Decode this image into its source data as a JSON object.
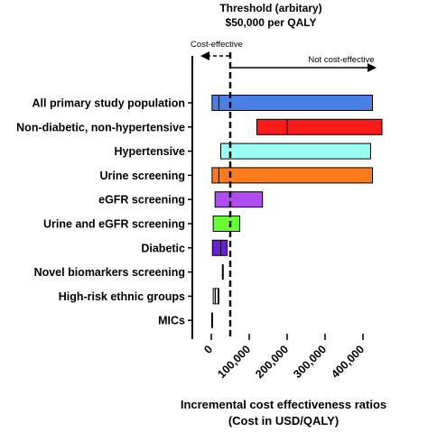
{
  "chart_data": {
    "type": "bar",
    "subtype": "horizontal-floating-range",
    "threshold": {
      "title_line1": "Threshold (arbitary)",
      "title_line2": "$50,000 per QALY",
      "value": 50000,
      "left_label": "Cost-effective",
      "right_label": "Not cost-effective"
    },
    "categories": [
      "All primary study population",
      "Non-diabetic, non-hypertensive",
      "Hypertensive",
      "Urine screening",
      "eGFR screening",
      "Urine and eGFR screening",
      "Diabetic",
      "Novel biomarkers screening",
      "High-risk ethnic groups",
      "MICs"
    ],
    "ranges": [
      {
        "low": 2000,
        "high": 425000,
        "point": 20000,
        "color": "#4a7fe8"
      },
      {
        "low": 120000,
        "high": 450000,
        "point": 200000,
        "color": "#ff1a1a"
      },
      {
        "low": 25000,
        "high": 420000,
        "point": null,
        "color": "#99fff5"
      },
      {
        "low": 2000,
        "high": 425000,
        "point": 20000,
        "color": "#ff7a1a"
      },
      {
        "low": 10000,
        "high": 135000,
        "point": null,
        "color": "#b04cf0"
      },
      {
        "low": 5000,
        "high": 75000,
        "point": null,
        "color": "#66ff33"
      },
      {
        "low": 3000,
        "high": 42000,
        "point": 25000,
        "color": "#6a1fd6"
      },
      {
        "low": 28000,
        "high": 30000,
        "point": null,
        "color": "#000000"
      },
      {
        "low": 5000,
        "high": 20000,
        "point": 10000,
        "color": "#ffffff",
        "hatched": true
      },
      {
        "low": 0,
        "high": 2000,
        "point": null,
        "color": "#000000"
      }
    ],
    "xlim": [
      -40000,
      460000
    ],
    "x_ticks": [
      0,
      100000,
      200000,
      300000,
      400000
    ],
    "x_tick_labels": [
      "0",
      "100,000",
      "200,000",
      "300,000",
      "400,000"
    ],
    "xlabel_line1": "Incremental cost effectiveness ratios",
    "xlabel_line2": "(Cost in USD/QALY)",
    "grid": false,
    "legend": "none"
  }
}
